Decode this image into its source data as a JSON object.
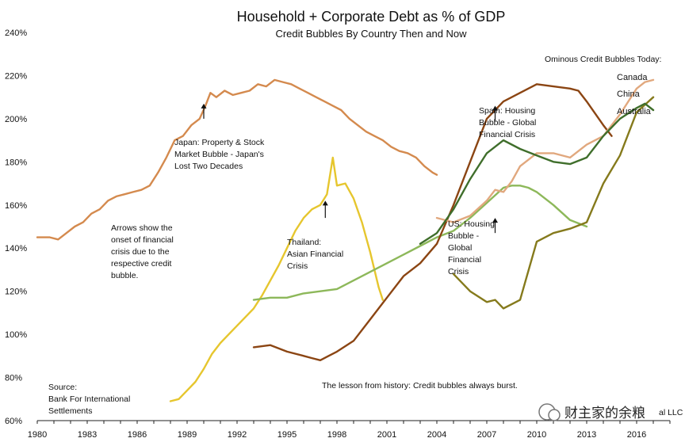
{
  "chart_data": {
    "type": "line",
    "title": "Household + Corporate Debt as % of GDP",
    "subtitle": "Credit Bubbles By Country Then and Now",
    "xlabel": "",
    "ylabel": "",
    "xlim": [
      1980,
      2018
    ],
    "ylim": [
      60,
      240
    ],
    "x_ticks": [
      "1980",
      "1983",
      "1986",
      "1989",
      "1992",
      "1995",
      "1998",
      "2001",
      "2004",
      "2007",
      "2010",
      "2013",
      "2016"
    ],
    "y_ticks": [
      "60%",
      "80%",
      "100%",
      "120%",
      "140%",
      "160%",
      "180%",
      "200%",
      "220%",
      "240%"
    ],
    "grid": false,
    "legend_header": "Ominous Credit Bubbles Today:",
    "series": [
      {
        "name": "",
        "color": "#d48a4e",
        "width": 2.4,
        "points": [
          [
            1980,
            145
          ],
          [
            1980.75,
            145
          ],
          [
            1981.25,
            144
          ],
          [
            1981.75,
            147
          ],
          [
            1982.25,
            150
          ],
          [
            1982.75,
            152
          ],
          [
            1983.25,
            156
          ],
          [
            1983.75,
            158
          ],
          [
            1984.25,
            162
          ],
          [
            1984.75,
            164
          ],
          [
            1985.25,
            165
          ],
          [
            1985.75,
            166
          ],
          [
            1986.25,
            167
          ],
          [
            1986.75,
            169
          ],
          [
            1987.25,
            175
          ],
          [
            1987.75,
            182
          ],
          [
            1988.25,
            190
          ],
          [
            1988.75,
            192
          ],
          [
            1989.25,
            197
          ],
          [
            1989.75,
            200
          ],
          [
            1990.1,
            206
          ],
          [
            1990.4,
            212
          ],
          [
            1990.75,
            210
          ],
          [
            1991.25,
            213
          ],
          [
            1991.75,
            211
          ],
          [
            1992.25,
            212
          ],
          [
            1992.75,
            213
          ],
          [
            1993.25,
            216
          ],
          [
            1993.75,
            215
          ],
          [
            1994.25,
            218
          ],
          [
            1994.75,
            217
          ],
          [
            1995.25,
            216
          ],
          [
            1995.75,
            214
          ],
          [
            1996.25,
            212
          ],
          [
            1996.75,
            210
          ],
          [
            1997.25,
            208
          ],
          [
            1997.75,
            206
          ],
          [
            1998.25,
            204
          ],
          [
            1998.75,
            200
          ],
          [
            1999.25,
            197
          ],
          [
            1999.75,
            194
          ],
          [
            2000.25,
            192
          ],
          [
            2000.75,
            190
          ],
          [
            2001.25,
            187
          ],
          [
            2001.75,
            185
          ],
          [
            2002.25,
            184
          ],
          [
            2002.75,
            182
          ],
          [
            2003.25,
            178
          ],
          [
            2003.75,
            175
          ],
          [
            2004,
            174
          ]
        ]
      },
      {
        "name": "",
        "color": "#e6c62e",
        "width": 2.4,
        "points": [
          [
            1988,
            69
          ],
          [
            1988.5,
            70
          ],
          [
            1989,
            74
          ],
          [
            1989.5,
            78
          ],
          [
            1990,
            84
          ],
          [
            1990.5,
            91
          ],
          [
            1991,
            96
          ],
          [
            1991.5,
            100
          ],
          [
            1992,
            104
          ],
          [
            1992.5,
            108
          ],
          [
            1993,
            112
          ],
          [
            1993.5,
            118
          ],
          [
            1994,
            125
          ],
          [
            1994.5,
            132
          ],
          [
            1995,
            140
          ],
          [
            1995.5,
            148
          ],
          [
            1996,
            154
          ],
          [
            1996.5,
            158
          ],
          [
            1997,
            160
          ],
          [
            1997.4,
            165
          ],
          [
            1997.75,
            182
          ],
          [
            1998,
            169
          ],
          [
            1998.5,
            170
          ],
          [
            1999,
            163
          ],
          [
            1999.5,
            152
          ],
          [
            2000,
            138
          ],
          [
            2000.5,
            122
          ],
          [
            2000.75,
            116
          ]
        ]
      },
      {
        "name": "",
        "color": "#8db85a",
        "width": 2.4,
        "points": [
          [
            1993,
            116
          ],
          [
            1994,
            117
          ],
          [
            1995,
            117
          ],
          [
            1996,
            119
          ],
          [
            1997,
            120
          ],
          [
            1998,
            121
          ],
          [
            1999,
            125
          ],
          [
            2000,
            129
          ],
          [
            2001,
            133
          ],
          [
            2002,
            137
          ],
          [
            2003,
            141
          ],
          [
            2004,
            145
          ],
          [
            2005,
            148
          ],
          [
            2006,
            154
          ],
          [
            2007,
            161
          ],
          [
            2008,
            168
          ],
          [
            2008.5,
            169
          ],
          [
            2009,
            169
          ],
          [
            2009.5,
            168
          ],
          [
            2010,
            166
          ],
          [
            2011,
            160
          ],
          [
            2012,
            153
          ],
          [
            2013,
            150
          ]
        ]
      },
      {
        "name": "",
        "color": "#8b4513",
        "width": 2.4,
        "points": [
          [
            1993,
            94
          ],
          [
            1994,
            95
          ],
          [
            1995,
            92
          ],
          [
            1996,
            90
          ],
          [
            1996.5,
            89
          ],
          [
            1997,
            88
          ],
          [
            1997.5,
            90
          ],
          [
            1998,
            92
          ],
          [
            1999,
            97
          ],
          [
            2000,
            107
          ],
          [
            2001,
            117
          ],
          [
            2002,
            127
          ],
          [
            2003,
            133
          ],
          [
            2004,
            142
          ],
          [
            2005,
            160
          ],
          [
            2006,
            180
          ],
          [
            2007,
            200
          ],
          [
            2008,
            208
          ],
          [
            2009,
            212
          ],
          [
            2010,
            216
          ],
          [
            2011,
            215
          ],
          [
            2012,
            214
          ],
          [
            2012.5,
            213
          ],
          [
            2013,
            208
          ],
          [
            2014,
            197
          ],
          [
            2014.5,
            192
          ]
        ]
      },
      {
        "name": "Canada",
        "color": "#e1a87e",
        "width": 2.4,
        "points": [
          [
            2004,
            154
          ],
          [
            2005,
            152
          ],
          [
            2006,
            155
          ],
          [
            2007,
            162
          ],
          [
            2007.5,
            167
          ],
          [
            2008,
            166
          ],
          [
            2008.5,
            171
          ],
          [
            2009,
            178
          ],
          [
            2010,
            184
          ],
          [
            2011,
            184
          ],
          [
            2012,
            182
          ],
          [
            2013,
            188
          ],
          [
            2014,
            192
          ],
          [
            2015,
            202
          ],
          [
            2016,
            214
          ],
          [
            2016.5,
            217
          ],
          [
            2017,
            218
          ]
        ]
      },
      {
        "name": "China",
        "color": "#857a1c",
        "width": 2.4,
        "points": [
          [
            2005,
            128
          ],
          [
            2006,
            120
          ],
          [
            2007,
            115
          ],
          [
            2007.5,
            116
          ],
          [
            2008,
            112
          ],
          [
            2009,
            116
          ],
          [
            2010,
            143
          ],
          [
            2011,
            147
          ],
          [
            2012,
            149
          ],
          [
            2013,
            152
          ],
          [
            2014,
            170
          ],
          [
            2015,
            183
          ],
          [
            2016,
            203
          ],
          [
            2017,
            210
          ]
        ]
      },
      {
        "name": "Australia",
        "color": "#3f6e2b",
        "width": 2.4,
        "points": [
          [
            2003,
            142
          ],
          [
            2004,
            147
          ],
          [
            2005,
            158
          ],
          [
            2006,
            172
          ],
          [
            2007,
            184
          ],
          [
            2008,
            190
          ],
          [
            2009,
            186
          ],
          [
            2010,
            183
          ],
          [
            2011,
            180
          ],
          [
            2012,
            179
          ],
          [
            2013,
            182
          ],
          [
            2014,
            192
          ],
          [
            2015,
            200
          ],
          [
            2016,
            205
          ],
          [
            2016.5,
            207
          ],
          [
            2017,
            204
          ]
        ]
      }
    ],
    "arrows": [
      [
        1990,
        200,
        207
      ],
      [
        1997.3,
        154,
        162
      ],
      [
        2007.5,
        199,
        206
      ],
      [
        2007.5,
        147,
        154
      ]
    ],
    "annotations": {
      "japan": [
        "Japan: Property & Stock",
        "Market Bubble - Japan's",
        "Lost Two Decades"
      ],
      "arrows_note": [
        "Arrows show the",
        "onset of financial",
        "crisis due to the",
        "respective credit",
        "bubble."
      ],
      "thailand": [
        "Thailand:",
        "Asian Financial",
        "Crisis"
      ],
      "spain": [
        "Spain: Housing",
        "Bubble - Global",
        "Financial Crisis"
      ],
      "us": [
        "US: Housing",
        "Bubble -",
        "Global",
        "Financial",
        "Crisis"
      ],
      "lesson": "The lesson from history: Credit bubbles always burst.",
      "source": [
        "Source:",
        "Bank For International",
        "Settlements"
      ],
      "watermark": "财主家的余粮",
      "credit_tail": "al LLC"
    }
  }
}
